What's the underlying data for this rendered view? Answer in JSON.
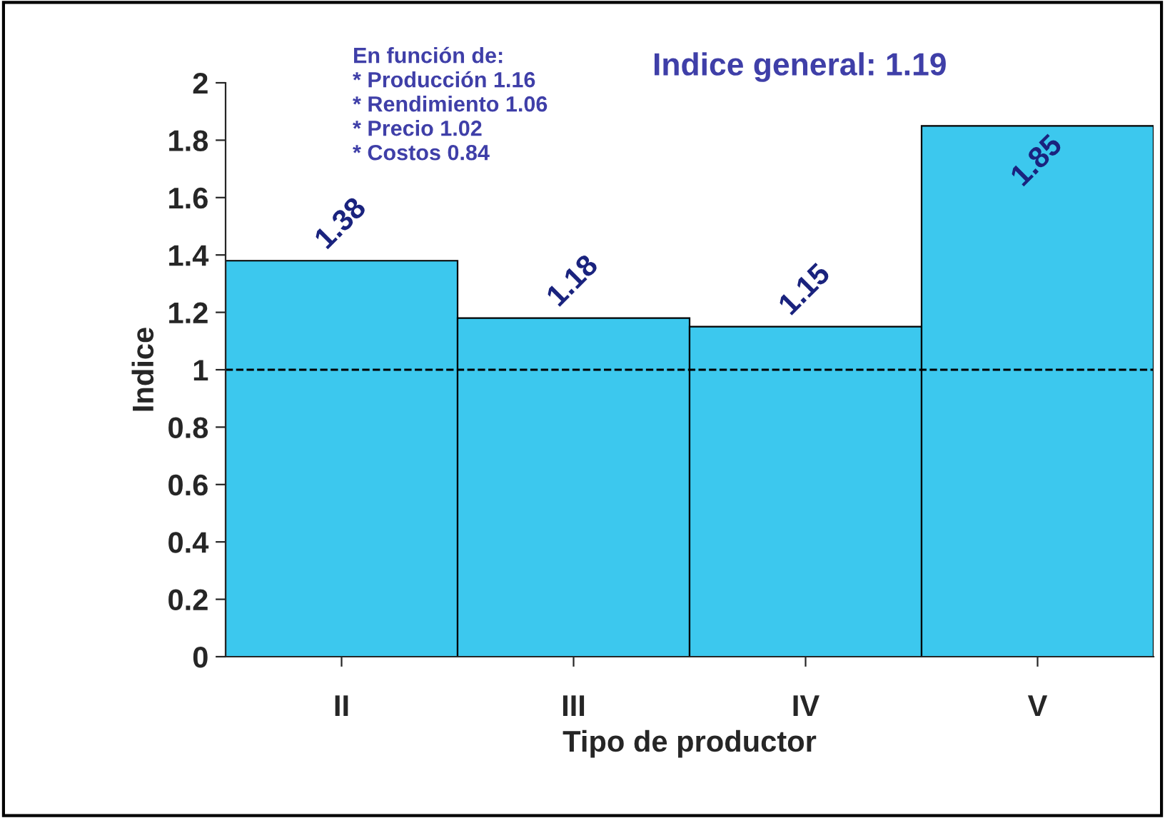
{
  "chart_data": {
    "type": "bar",
    "xlabel": "Tipo de productor",
    "ylabel": "Indice",
    "categories": [
      "II",
      "III",
      "IV",
      "V"
    ],
    "values": [
      1.38,
      1.18,
      1.15,
      1.85
    ],
    "color": "#3cc8ee",
    "data_labels": true,
    "ylim": [
      0,
      2
    ],
    "yticks": [
      0,
      0.2,
      0.4,
      0.6,
      0.8,
      1,
      1.2,
      1.4,
      1.6,
      1.8,
      2
    ],
    "grid": false,
    "ref_lines": [
      {
        "axis": "y",
        "value": 1,
        "line_style": "dashed",
        "color": "#000000"
      }
    ],
    "annotations": [
      "En función de:\n* Producción 1.16\n* Rendimiento 1.06\n* Precio 1.02\n* Costos 0.84",
      "Indice general: 1.19"
    ]
  }
}
